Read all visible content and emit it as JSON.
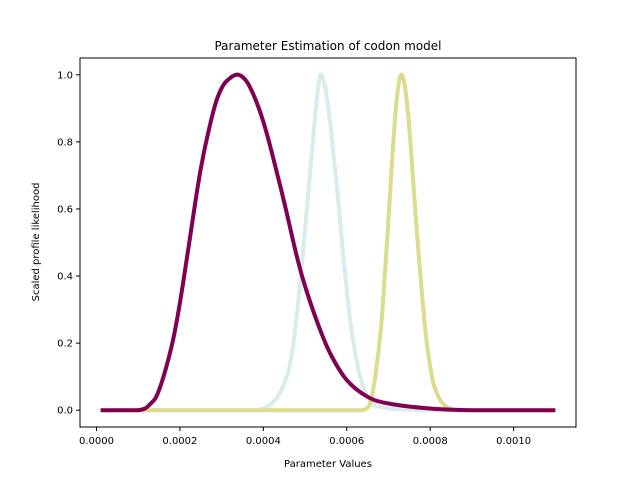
{
  "chart_data": {
    "type": "line",
    "title": "Parameter Estimation of codon model",
    "xlabel": "Parameter Values",
    "ylabel": "Scaled profile likelihood",
    "xlim": [
      -3.95e-05,
      0.0011495
    ],
    "ylim": [
      -0.05,
      1.05
    ],
    "x_ticks": [
      0.0,
      0.0002,
      0.0004,
      0.0006,
      0.0008,
      0.001
    ],
    "x_tick_labels": [
      "0.0000",
      "0.0002",
      "0.0004",
      "0.0006",
      "0.0008",
      "0.0010"
    ],
    "y_ticks": [
      0.0,
      0.2,
      0.4,
      0.6,
      0.8,
      1.0
    ],
    "y_tick_labels": [
      "0.0",
      "0.2",
      "0.4",
      "0.6",
      "0.8",
      "1.0"
    ],
    "grid": false,
    "legend": "none",
    "series": [
      {
        "color": "#d9ecec",
        "x": [
          1e-05,
          0.0001,
          0.0003,
          0.00038,
          0.00042,
          0.00045,
          0.00047,
          0.00049,
          0.0005,
          0.00051,
          0.00052,
          0.00053,
          0.000537,
          0.000545,
          0.00055,
          0.00056,
          0.00057,
          0.00058,
          0.00059,
          0.0006,
          0.00061,
          0.00063,
          0.00065,
          0.00068,
          0.0008,
          0.0011
        ],
        "y": [
          0.0,
          0.0,
          0.0,
          0.0,
          0.02,
          0.08,
          0.18,
          0.4,
          0.54,
          0.68,
          0.82,
          0.95,
          1.0,
          0.98,
          0.95,
          0.86,
          0.74,
          0.62,
          0.48,
          0.36,
          0.25,
          0.11,
          0.04,
          0.01,
          0.0,
          0.0
        ]
      },
      {
        "color": "#dadc8e",
        "x": [
          1e-05,
          0.0004,
          0.0006,
          0.00064,
          0.00066,
          0.00068,
          0.00069,
          0.0007,
          0.00071,
          0.00072,
          0.00073,
          0.00074,
          0.00075,
          0.00076,
          0.00077,
          0.00078,
          0.00079,
          0.0008,
          0.00081,
          0.00083,
          0.00086,
          0.0009,
          0.0011
        ],
        "y": [
          0.0,
          0.0,
          0.0,
          0.0,
          0.04,
          0.22,
          0.38,
          0.57,
          0.77,
          0.93,
          1.0,
          0.96,
          0.84,
          0.67,
          0.5,
          0.35,
          0.22,
          0.13,
          0.07,
          0.02,
          0.0,
          0.0,
          0.0
        ]
      },
      {
        "color": "#800052",
        "x": [
          1e-05,
          0.0001,
          0.00013,
          0.00015,
          0.00018,
          0.0002,
          0.00022,
          0.00025,
          0.00028,
          0.0003,
          0.00032,
          0.00034,
          0.00036,
          0.00038,
          0.0004,
          0.00042,
          0.00045,
          0.00048,
          0.0005,
          0.00053,
          0.00056,
          0.0006,
          0.00065,
          0.0007,
          0.0008,
          0.0009,
          0.0011
        ],
        "y": [
          0.0,
          0.0,
          0.02,
          0.06,
          0.19,
          0.32,
          0.48,
          0.72,
          0.89,
          0.96,
          0.99,
          1.0,
          0.98,
          0.93,
          0.86,
          0.77,
          0.62,
          0.46,
          0.37,
          0.26,
          0.17,
          0.09,
          0.04,
          0.02,
          0.005,
          0.0,
          0.0
        ]
      }
    ]
  }
}
